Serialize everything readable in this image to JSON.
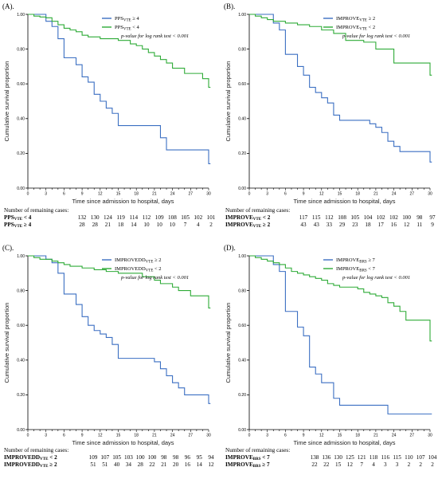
{
  "colors": {
    "blue": "#3b6fc2",
    "green": "#2eab37"
  },
  "panels": [
    {
      "id": "A",
      "label": "(A).",
      "ylabel": "Cumulative survival proportion",
      "xlabel": "Time since admission to hospital, days",
      "legend": [
        "PPSVTE ≥ 4",
        "PPSVTE < 4"
      ],
      "pvalue": "p-value for log rank test < 0.001",
      "remaining_title": "Number of remaining cases:",
      "remaining_rows": [
        {
          "label": "PPSVTE < 4",
          "values": [
            "132",
            "130",
            "124",
            "119",
            "114",
            "112",
            "109",
            "108",
            "105",
            "102",
            "101"
          ]
        },
        {
          "label": "PPSVTE ≥ 4",
          "values": [
            "28",
            "28",
            "21",
            "18",
            "14",
            "10",
            "10",
            "10",
            "7",
            "4",
            "2"
          ]
        }
      ]
    },
    {
      "id": "B",
      "label": "(B).",
      "ylabel": "Cumulative survival proportion",
      "xlabel": "Time since admission to hospital, days",
      "legend": [
        "IMPROVEVTE ≥ 2",
        "IMPROVEVTE < 2"
      ],
      "pvalue": "p-value for log rank test < 0.001",
      "remaining_title": "Number of remaining cases:",
      "remaining_rows": [
        {
          "label": "IMPROVEVTE < 2",
          "values": [
            "117",
            "115",
            "112",
            "108",
            "105",
            "104",
            "102",
            "102",
            "100",
            "98",
            "97"
          ]
        },
        {
          "label": "IMPROVEVTE ≥ 2",
          "values": [
            "43",
            "43",
            "33",
            "29",
            "23",
            "18",
            "17",
            "16",
            "12",
            "11",
            "9"
          ]
        }
      ]
    },
    {
      "id": "C",
      "label": "(C).",
      "ylabel": "Cumulative survival proportion",
      "xlabel": "Time since admission to hospital, days",
      "legend": [
        "IMPROVEDDVTE ≥ 2",
        "IMPROVEDDVTE < 2"
      ],
      "pvalue": "p-value for log rank test < 0.001",
      "remaining_title": "Number of remaining cases:",
      "remaining_rows": [
        {
          "label": "IMPROVEDDVTE < 2",
          "values": [
            "109",
            "107",
            "105",
            "103",
            "100",
            "100",
            "98",
            "98",
            "96",
            "95",
            "94"
          ]
        },
        {
          "label": "IMPROVEDDVTE ≥ 2",
          "values": [
            "51",
            "51",
            "40",
            "34",
            "28",
            "22",
            "21",
            "20",
            "16",
            "14",
            "12"
          ]
        }
      ]
    },
    {
      "id": "D",
      "label": "(D).",
      "ylabel": "Cumulative survival proportion",
      "xlabel": "Time since admission to hospital, days",
      "legend": [
        "IMPROVEBRS ≥ 7",
        "IMPROVEBRS < 7"
      ],
      "pvalue": "p-value for log rank test < 0.001",
      "remaining_title": "Number of remaining cases:",
      "remaining_rows": [
        {
          "label": "IMPROVEBRS < 7",
          "values": [
            "138",
            "136",
            "130",
            "125",
            "121",
            "118",
            "116",
            "115",
            "110",
            "107",
            "104"
          ]
        },
        {
          "label": "IMPROVEBRS ≥ 7",
          "values": [
            "22",
            "22",
            "15",
            "12",
            "7",
            "4",
            "3",
            "3",
            "2",
            "2",
            "2"
          ]
        }
      ]
    }
  ],
  "chart_data": [
    {
      "type": "line",
      "step": true,
      "title": "(A).",
      "xlabel": "Time since admission to hospital, days",
      "ylabel": "Cumulative survival proportion",
      "xlim": [
        0,
        30
      ],
      "ylim": [
        0,
        1.0
      ],
      "xticks": [
        0,
        1,
        2,
        3,
        4,
        5,
        6,
        7,
        8,
        9,
        10,
        11,
        12,
        13,
        14,
        15,
        16,
        17,
        18,
        19,
        20,
        21,
        22,
        23,
        24,
        25,
        26,
        27,
        28,
        29,
        30
      ],
      "yticks": [
        0.0,
        0.2,
        0.4,
        0.6,
        0.8,
        1.0
      ],
      "ytick_labels": [
        "0.00",
        "0.20",
        "0.40",
        "0.60",
        "0.80",
        "1.00"
      ],
      "series": [
        {
          "name": "PPSVTE ≥ 4",
          "color": "blue",
          "x": [
            0,
            3,
            4,
            5,
            6,
            8,
            9,
            10,
            11,
            12,
            13,
            14,
            15,
            20,
            22,
            23,
            30,
            30.3
          ],
          "y": [
            1.0,
            0.96,
            0.93,
            0.86,
            0.75,
            0.71,
            0.64,
            0.61,
            0.54,
            0.5,
            0.46,
            0.43,
            0.36,
            0.36,
            0.29,
            0.22,
            0.14,
            0.14
          ]
        },
        {
          "name": "PPSVTE < 4",
          "color": "green",
          "x": [
            0,
            1,
            2,
            3,
            4,
            5,
            6,
            7,
            8,
            9,
            10,
            12,
            15,
            17,
            18,
            19,
            20,
            21,
            22,
            23,
            24,
            26,
            29,
            30,
            30.3
          ],
          "y": [
            1.0,
            0.99,
            0.985,
            0.98,
            0.96,
            0.94,
            0.92,
            0.91,
            0.9,
            0.88,
            0.87,
            0.86,
            0.85,
            0.83,
            0.82,
            0.8,
            0.78,
            0.76,
            0.74,
            0.72,
            0.69,
            0.66,
            0.63,
            0.58,
            0.58
          ]
        }
      ]
    },
    {
      "type": "line",
      "step": true,
      "title": "(B).",
      "xlabel": "Time since admission to hospital, days",
      "ylabel": "Cumulative survival proportion",
      "xlim": [
        0,
        30
      ],
      "ylim": [
        0,
        1.0
      ],
      "xticks": [
        0,
        1,
        2,
        3,
        4,
        5,
        6,
        7,
        8,
        9,
        10,
        11,
        12,
        13,
        14,
        15,
        16,
        17,
        18,
        19,
        20,
        21,
        22,
        23,
        24,
        25,
        26,
        27,
        28,
        29,
        30
      ],
      "yticks": [
        0.0,
        0.2,
        0.4,
        0.6,
        0.8,
        1.0
      ],
      "ytick_labels": [
        "0.00",
        "0.20",
        "0.40",
        "0.60",
        "0.80",
        "1.00"
      ],
      "series": [
        {
          "name": "IMPROVEVTE ≥ 2",
          "color": "blue",
          "x": [
            0,
            4,
            5,
            6,
            8,
            9,
            10,
            11,
            12,
            13,
            14,
            15,
            20,
            21,
            22,
            23,
            24,
            25,
            30,
            30.3
          ],
          "y": [
            1.0,
            0.95,
            0.91,
            0.77,
            0.7,
            0.65,
            0.58,
            0.55,
            0.52,
            0.49,
            0.42,
            0.39,
            0.37,
            0.35,
            0.32,
            0.27,
            0.24,
            0.21,
            0.15,
            0.15
          ]
        },
        {
          "name": "IMPROVEVTE < 2",
          "color": "green",
          "x": [
            0,
            1,
            2,
            3,
            4,
            6,
            8,
            10,
            12,
            14,
            16,
            19,
            21,
            24,
            27,
            30,
            30.3
          ],
          "y": [
            1.0,
            0.99,
            0.98,
            0.97,
            0.96,
            0.95,
            0.94,
            0.93,
            0.91,
            0.89,
            0.85,
            0.84,
            0.8,
            0.72,
            0.72,
            0.65,
            0.65
          ]
        }
      ]
    },
    {
      "type": "line",
      "step": true,
      "title": "(C).",
      "xlabel": "Time since admission to hospital, days",
      "ylabel": "Cumulative survival proportion",
      "xlim": [
        0,
        30
      ],
      "ylim": [
        0,
        1.0
      ],
      "xticks": [
        0,
        1,
        2,
        3,
        4,
        5,
        6,
        7,
        8,
        9,
        10,
        11,
        12,
        13,
        14,
        15,
        16,
        17,
        18,
        19,
        20,
        21,
        22,
        23,
        24,
        25,
        26,
        27,
        28,
        29,
        30
      ],
      "yticks": [
        0.0,
        0.2,
        0.4,
        0.6,
        0.8,
        1.0
      ],
      "ytick_labels": [
        "0.00",
        "0.20",
        "0.40",
        "0.60",
        "0.80",
        "1.00"
      ],
      "series": [
        {
          "name": "IMPROVEDDVTE ≥ 2",
          "color": "blue",
          "x": [
            0,
            3,
            4,
            5,
            6,
            8,
            9,
            10,
            11,
            12,
            13,
            14,
            15,
            21,
            22,
            23,
            24,
            25,
            26,
            30,
            30.3
          ],
          "y": [
            1.0,
            0.98,
            0.96,
            0.9,
            0.78,
            0.72,
            0.65,
            0.6,
            0.57,
            0.55,
            0.53,
            0.49,
            0.41,
            0.39,
            0.35,
            0.31,
            0.27,
            0.24,
            0.2,
            0.15,
            0.15
          ]
        },
        {
          "name": "IMPROVEDDVTE < 2",
          "color": "green",
          "x": [
            0,
            1,
            2,
            4,
            5,
            6,
            7,
            9,
            11,
            13,
            15,
            17,
            19,
            21,
            22,
            24,
            25,
            27,
            30,
            30.3
          ],
          "y": [
            1.0,
            0.99,
            0.98,
            0.97,
            0.96,
            0.95,
            0.94,
            0.93,
            0.92,
            0.91,
            0.9,
            0.9,
            0.88,
            0.86,
            0.84,
            0.82,
            0.8,
            0.77,
            0.7,
            0.7
          ]
        }
      ]
    },
    {
      "type": "line",
      "step": true,
      "title": "(D).",
      "xlabel": "Time since admission to hospital, days",
      "ylabel": "Cumulative survival proportion",
      "xlim": [
        0,
        30
      ],
      "ylim": [
        0,
        1.0
      ],
      "xticks": [
        0,
        1,
        2,
        3,
        4,
        5,
        6,
        7,
        8,
        9,
        10,
        11,
        12,
        13,
        14,
        15,
        16,
        17,
        18,
        19,
        20,
        21,
        22,
        23,
        24,
        25,
        26,
        27,
        28,
        29,
        30
      ],
      "yticks": [
        0.0,
        0.2,
        0.4,
        0.6,
        0.8,
        1.0
      ],
      "ytick_labels": [
        "0.00",
        "0.20",
        "0.40",
        "0.60",
        "0.80",
        "1.00"
      ],
      "series": [
        {
          "name": "IMPROVEBRS ≥ 7",
          "color": "blue",
          "x": [
            0,
            4,
            5,
            6,
            8,
            9,
            10,
            11,
            12,
            14,
            15,
            16,
            23,
            30,
            30.3
          ],
          "y": [
            1.0,
            0.95,
            0.91,
            0.68,
            0.59,
            0.54,
            0.36,
            0.32,
            0.27,
            0.18,
            0.14,
            0.14,
            0.09,
            0.09,
            0.09
          ]
        },
        {
          "name": "IMPROVEBRS < 7",
          "color": "green",
          "x": [
            0,
            1,
            2,
            3,
            4,
            5,
            6,
            7,
            8,
            9,
            10,
            11,
            12,
            13,
            14,
            15,
            16,
            18,
            19,
            20,
            21,
            22,
            23,
            24,
            25,
            26,
            30,
            30.3
          ],
          "y": [
            1.0,
            0.99,
            0.98,
            0.97,
            0.96,
            0.95,
            0.93,
            0.91,
            0.9,
            0.89,
            0.88,
            0.87,
            0.86,
            0.84,
            0.83,
            0.82,
            0.82,
            0.81,
            0.79,
            0.78,
            0.77,
            0.76,
            0.73,
            0.71,
            0.68,
            0.63,
            0.51,
            0.51
          ]
        }
      ]
    }
  ]
}
